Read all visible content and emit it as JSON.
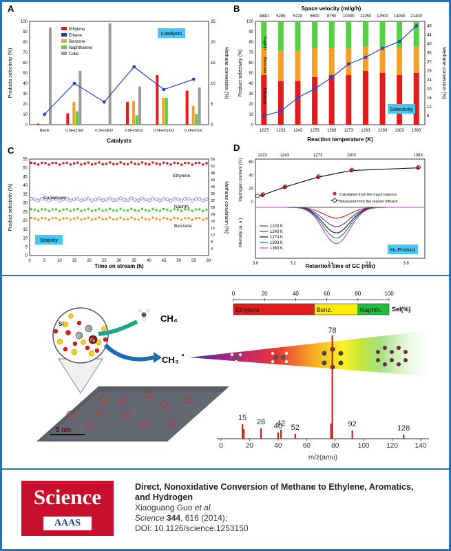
{
  "panel_labels": {
    "a": "A",
    "b": "B",
    "c": "C",
    "d": "D"
  },
  "panelA": {
    "legend": [
      "Ethylene",
      "Ethane",
      "Benzene",
      "Naphthalene",
      "Coke"
    ],
    "tag": "Catalysts",
    "xlabel": "Catalysts",
    "ylabel": "Products selectivity (%)",
    "y2label": "Methane conversion (%)"
  },
  "panelB": {
    "top_axis_title": "Space velocity (ml/g/h)",
    "xlabel": "Reaction temperature (K)",
    "ylabel": "Product selectivity (%)",
    "y2label": "Methane conversion (%)",
    "tag": "Selectivity",
    "bar_labels": [
      "Naphth.",
      "Benzene",
      "Ethylene"
    ]
  },
  "panelC": {
    "xlabel": "Time on stream (h)",
    "ylabel": "Product selectivity (%)",
    "y2label": "Methane conversion (%)",
    "tag": "Stability",
    "series_labels": [
      "Ethylene",
      "Conversion",
      "Naphth.",
      "Benzene"
    ]
  },
  "panelD": {
    "xlabel": "Retention time of GC (min)",
    "ylabel_top": "Hydrogen content (%)",
    "ylabel_bottom": "Intensity (a. u.)",
    "tag": "H₂ Product",
    "legend_top": [
      "Calculated from the mass balance",
      "Measured from the reactor effluent"
    ],
    "legend_bottom": [
      "1223 K",
      "1243 K",
      "1273 K",
      "1303 K",
      "1363 K"
    ]
  },
  "mid": {
    "ch4": "CH₄",
    "ch3": "CH₃",
    "ch3_sup": "•",
    "scale": "5 nm",
    "atoms": [
      "Si",
      "C",
      "C",
      "Fe"
    ],
    "sel_axis_ticks": [
      "0",
      "20",
      "40",
      "60",
      "80",
      "100"
    ],
    "sel_segments": [
      "Ethylene",
      "Benz.",
      "Naphth."
    ],
    "sel_unit": "Sel(%)",
    "ms_peak_labels": [
      "15",
      "28",
      "40",
      "42",
      "52",
      "78",
      "92",
      "128"
    ],
    "ms_xticks": [
      "0",
      "20",
      "40",
      "60",
      "80",
      "100",
      "120",
      "140"
    ],
    "ms_xlabel": "m/z(amu)"
  },
  "citation": {
    "logo_word": "Science",
    "logo_sub": "AAAS",
    "title": "Direct, Nonoxidative Conversion of Methane to Ethylene, Aromatics, and Hydrogen",
    "authors": "Xiaoguang Guo",
    "authors_suffix": "et al.",
    "journal": "Science",
    "volume": "344",
    "pages_year": ", 616 (2014);",
    "doi": "DOI: 10.1126/science.1253150"
  },
  "chart_data": [
    {
      "type": "bar",
      "panel": "A",
      "categories": [
        "Blank",
        "0.5FeZSM",
        "0.5FeSiO2",
        "0.8FeSiO2",
        "0.5Fe©SiO2",
        "0.2Fe©SiC"
      ],
      "series": [
        {
          "name": "Ethylene",
          "values": [
            1,
            11,
            0,
            22,
            48,
            33
          ]
        },
        {
          "name": "Ethane",
          "values": [
            0,
            0,
            0,
            0,
            0,
            0
          ]
        },
        {
          "name": "Benzene",
          "values": [
            0,
            22,
            0,
            23,
            26,
            18
          ]
        },
        {
          "name": "Naphthalene",
          "values": [
            0,
            13,
            0,
            9,
            26,
            10
          ]
        },
        {
          "name": "Coke",
          "values": [
            94,
            52,
            98,
            37,
            0,
            36
          ]
        }
      ],
      "conversion": [
        2.5,
        10,
        5.5,
        14,
        8.5,
        11
      ],
      "ylim": [
        0,
        100
      ],
      "y2lim": [
        0,
        25
      ],
      "yticks": [
        0,
        10,
        20,
        30,
        40,
        50,
        60,
        70,
        80,
        90,
        100
      ],
      "y2ticks": [
        0,
        5,
        10,
        15,
        20,
        25
      ]
    },
    {
      "type": "bar",
      "panel": "B",
      "categories": [
        "1223",
        "1233",
        "1243",
        "1253",
        "1263",
        "1273",
        "1283",
        "1293",
        "1303",
        "1363"
      ],
      "space_velocity": [
        "4840",
        "5280",
        "5720",
        "6600",
        "8750",
        "10000",
        "11250",
        "12500",
        "14000",
        "21400"
      ],
      "series": [
        {
          "name": "Ethylene",
          "values": [
            48,
            42,
            42,
            46,
            48,
            48,
            52,
            50,
            48,
            50
          ]
        },
        {
          "name": "Benzene",
          "values": [
            26,
            30,
            30,
            28,
            26,
            26,
            24,
            25,
            26,
            26
          ]
        },
        {
          "name": "Naphthalene",
          "values": [
            26,
            28,
            28,
            26,
            26,
            26,
            24,
            25,
            26,
            24
          ]
        }
      ],
      "conversion": [
        8,
        10,
        16,
        20,
        25,
        31,
        34,
        38,
        41,
        48
      ],
      "ylim": [
        0,
        100
      ],
      "y2lim": [
        4,
        50
      ],
      "yticks": [
        0,
        10,
        20,
        30,
        40,
        50,
        60,
        70,
        80,
        90,
        100
      ],
      "y2ticks": [
        8,
        12,
        16,
        20,
        24,
        28,
        32,
        36,
        40,
        44,
        48
      ]
    },
    {
      "type": "scatter",
      "panel": "C",
      "x_range": [
        0,
        60
      ],
      "xticks": [
        0,
        5,
        10,
        15,
        20,
        25,
        30,
        35,
        40,
        45,
        50,
        55,
        60
      ],
      "yticks": [
        0,
        5,
        10,
        15,
        20,
        25,
        30,
        35,
        40,
        45,
        50,
        55
      ],
      "y2ticks": [
        4,
        8,
        12,
        16,
        20,
        24,
        28,
        32,
        36,
        40,
        44,
        48,
        52,
        56
      ],
      "series": [
        {
          "name": "Ethylene",
          "level": 52.5
        },
        {
          "name": "Conversion",
          "level": 32
        },
        {
          "name": "Naphth.",
          "level": 26
        },
        {
          "name": "Benzene",
          "level": 21
        }
      ]
    },
    {
      "type": "line",
      "panel": "D",
      "top_x": [
        1223,
        1243,
        1273,
        1303,
        1363
      ],
      "hydrogen_content": [
        10,
        22,
        37,
        47,
        51
      ],
      "y_top_ticks": [
        0,
        20,
        40,
        60
      ],
      "x_ticks": [
        "3.0",
        "3.2",
        "3.4",
        "3.6",
        "3.8"
      ],
      "peak_depths": [
        {
          "T": "1223 K",
          "depth": 0.25
        },
        {
          "T": "1243 K",
          "depth": 0.45
        },
        {
          "T": "1273 K",
          "depth": 0.6
        },
        {
          "T": "1303 K",
          "depth": 0.72
        },
        {
          "T": "1363 K",
          "depth": 0.85
        }
      ]
    },
    {
      "type": "bar",
      "panel": "mass-spectrum",
      "peaks": [
        15,
        28,
        40,
        42,
        52,
        78,
        92,
        128
      ],
      "intensities": [
        0.35,
        0.25,
        0.15,
        0.22,
        0.12,
        1.0,
        0.2,
        0.1
      ],
      "xlim": [
        0,
        140
      ]
    },
    {
      "type": "bar",
      "panel": "selectivity-bar",
      "segments": [
        "Ethylene",
        "Benz.",
        "Naphth."
      ],
      "values": [
        52,
        28,
        20
      ],
      "colors": [
        "#e41a1c",
        "#ffed00",
        "#1fbf3a"
      ]
    }
  ],
  "colors": {
    "frame": "#2d6fb3",
    "ethylene": "#e41a1c",
    "ethane": "#1f3fa0",
    "benzene": "#f5a02a",
    "naphthalene": "#55d045",
    "coke": "#9a9a9a",
    "conv": "#2a3fd6",
    "tag": "#45c8f5",
    "science_red": "#c8102e"
  }
}
